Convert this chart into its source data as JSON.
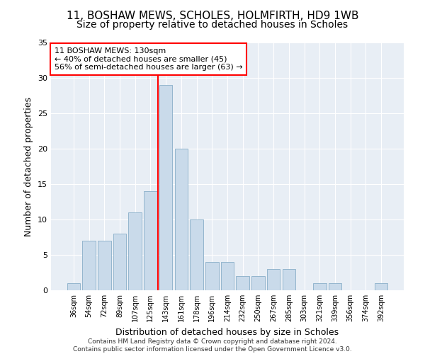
{
  "title_line1": "11, BOSHAW MEWS, SCHOLES, HOLMFIRTH, HD9 1WB",
  "title_line2": "Size of property relative to detached houses in Scholes",
  "xlabel": "Distribution of detached houses by size in Scholes",
  "ylabel": "Number of detached properties",
  "categories": [
    "36sqm",
    "54sqm",
    "72sqm",
    "89sqm",
    "107sqm",
    "125sqm",
    "143sqm",
    "161sqm",
    "178sqm",
    "196sqm",
    "214sqm",
    "232sqm",
    "250sqm",
    "267sqm",
    "285sqm",
    "303sqm",
    "321sqm",
    "339sqm",
    "356sqm",
    "374sqm",
    "392sqm"
  ],
  "values": [
    1,
    7,
    7,
    8,
    11,
    14,
    29,
    20,
    10,
    4,
    4,
    2,
    2,
    3,
    3,
    0,
    1,
    1,
    0,
    0,
    1
  ],
  "bar_color": "#c9daea",
  "bar_edge_color": "#88aec8",
  "ref_line_color": "red",
  "ref_line_x": 5.5,
  "annotation_text": "11 BOSHAW MEWS: 130sqm\n← 40% of detached houses are smaller (45)\n56% of semi-detached houses are larger (63) →",
  "annotation_box_color": "white",
  "annotation_box_edge_color": "red",
  "ylim": [
    0,
    35
  ],
  "yticks": [
    0,
    5,
    10,
    15,
    20,
    25,
    30,
    35
  ],
  "background_color": "#e8eef5",
  "footnote": "Contains HM Land Registry data © Crown copyright and database right 2024.\nContains public sector information licensed under the Open Government Licence v3.0.",
  "title_fontsize": 11,
  "subtitle_fontsize": 10,
  "label_fontsize": 9,
  "tick_fontsize": 7,
  "footnote_fontsize": 6.5,
  "annotation_fontsize": 8
}
